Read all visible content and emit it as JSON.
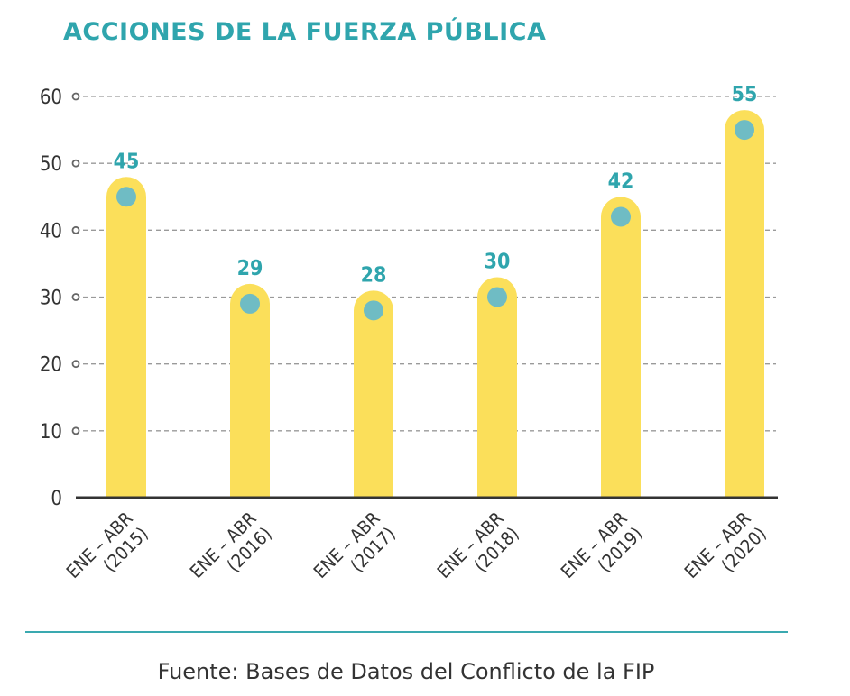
{
  "chart_data": {
    "type": "bar",
    "title": "ACCIONES DE LA FUERZA PÚBLICA",
    "categories": [
      [
        "ENE – ABR",
        "(2015)"
      ],
      [
        "ENE – ABR",
        "(2016)"
      ],
      [
        "ENE – ABR",
        "(2017)"
      ],
      [
        "ENE – ABR",
        "(2018)"
      ],
      [
        "ENE – ABR",
        "(2019)"
      ],
      [
        "ENE – ABR",
        "(2020)"
      ]
    ],
    "values": [
      45,
      29,
      28,
      30,
      42,
      55
    ],
    "value_labels": [
      "45",
      "29",
      "28",
      "30",
      "42",
      "55"
    ],
    "ylim": [
      0,
      60
    ],
    "yticks": [
      0,
      10,
      20,
      30,
      40,
      50,
      60
    ],
    "ytick_labels": [
      "0",
      "10",
      "20",
      "30",
      "40",
      "50",
      "60"
    ],
    "grid": true,
    "xlabel": "",
    "ylabel": "",
    "colors": {
      "bar": "#fbdf5a",
      "dot": "#6fbcc4",
      "label": "#2fa5ad",
      "title": "#2fa5ad",
      "grid": "#9a9a9a",
      "axis": "#333333"
    }
  },
  "source": "Fuente: Bases de Datos del Conflicto de la FIP"
}
